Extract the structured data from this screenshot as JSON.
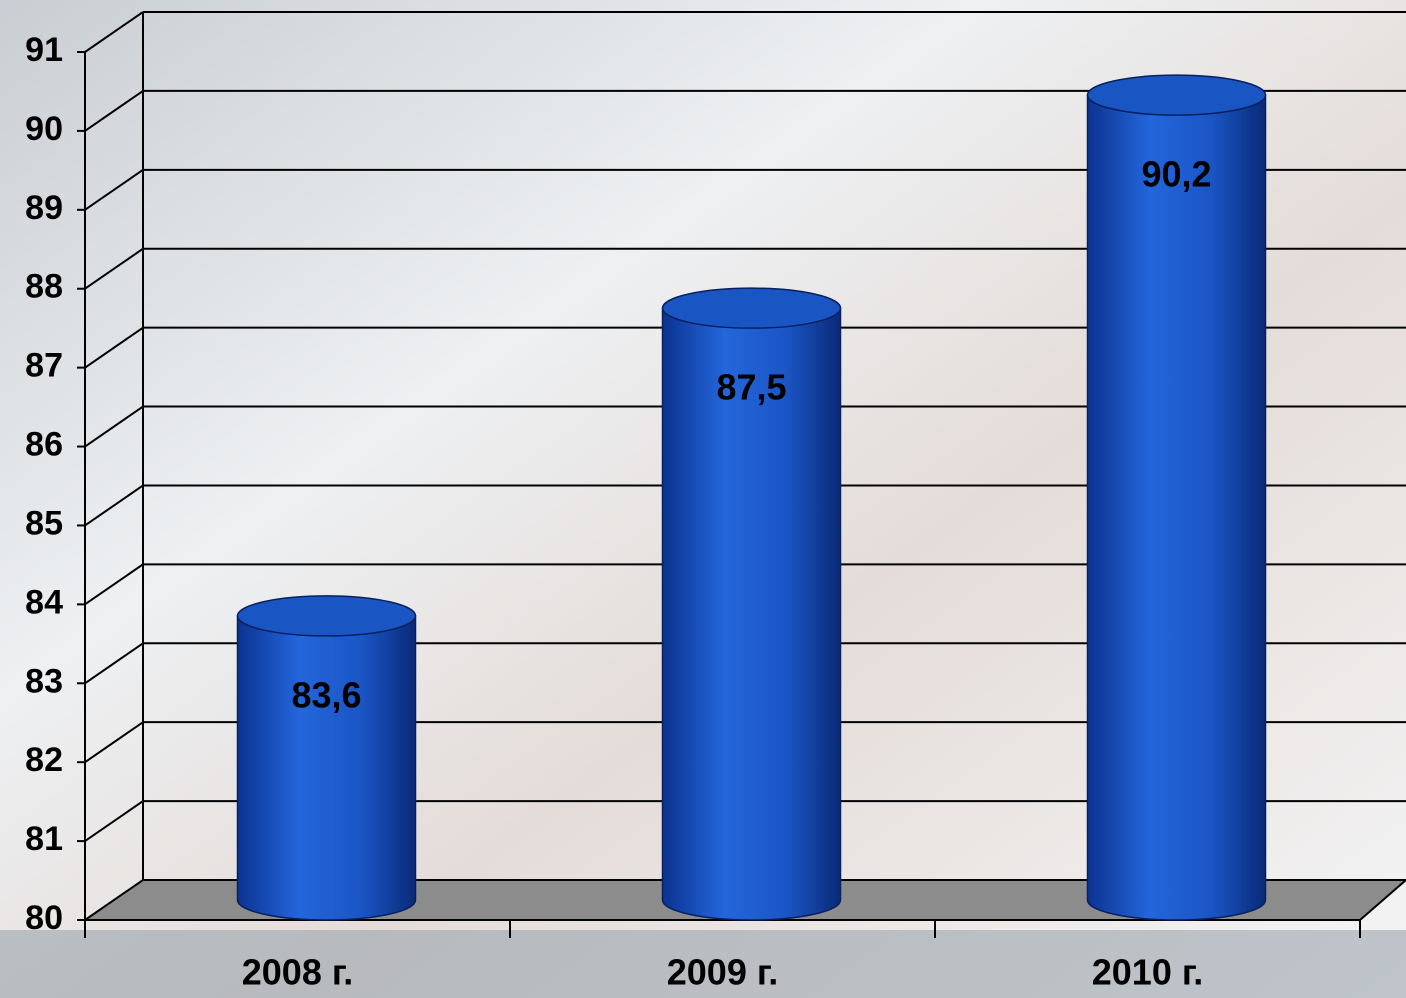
{
  "chart_data": {
    "type": "bar",
    "categories": [
      "2008 г.",
      "2009 г.",
      "2010 г."
    ],
    "values": [
      83.6,
      87.5,
      90.2
    ],
    "value_labels": [
      "83,6",
      "87,5",
      "90,2"
    ],
    "color": "#1a55c4",
    "ylim": [
      80,
      91
    ],
    "yticks": [
      80,
      81,
      82,
      83,
      84,
      85,
      86,
      87,
      88,
      89,
      90,
      91
    ],
    "grid": true
  }
}
